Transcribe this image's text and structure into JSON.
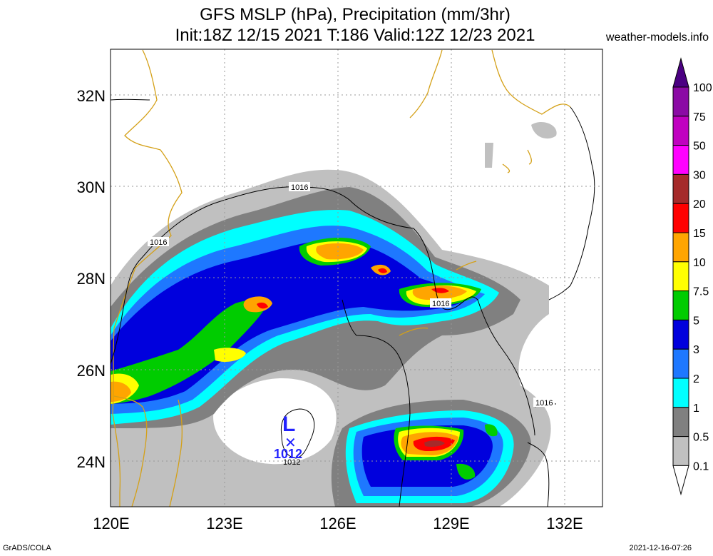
{
  "header": {
    "title_line1": "GFS MSLP (hPa), Precipitation (mm/3hr)",
    "title_line2": "Init:18Z 12/15 2021 T:186 Valid:12Z 12/23 2021",
    "site": "weather-models.info"
  },
  "footer": {
    "left": "GrADS/COLA",
    "right": "2021-12-16-07:26"
  },
  "map": {
    "lon_labels": [
      "120E",
      "123E",
      "126E",
      "129E",
      "132E"
    ],
    "lat_labels": [
      "32N",
      "30N",
      "28N",
      "26N",
      "24N"
    ],
    "isobar_labels": [
      "1016",
      "1016",
      "1016",
      "1016",
      "1012"
    ],
    "low_center": {
      "symbol": "L",
      "pressure": "1012"
    }
  },
  "colorbar": {
    "labels": [
      "100",
      "75",
      "50",
      "30",
      "20",
      "15",
      "10",
      "7.5",
      "5",
      "3",
      "2",
      "1",
      "0.5",
      "0.1"
    ],
    "colors": [
      "#4b0082",
      "#8b0aa5",
      "#c000c0",
      "#ff00ff",
      "#a52a2a",
      "#ff0000",
      "#ffa500",
      "#ffff00",
      "#00cc00",
      "#0000dd",
      "#1e78ff",
      "#00ffff",
      "#808080",
      "#c0c0c0",
      "#ffffff"
    ]
  }
}
